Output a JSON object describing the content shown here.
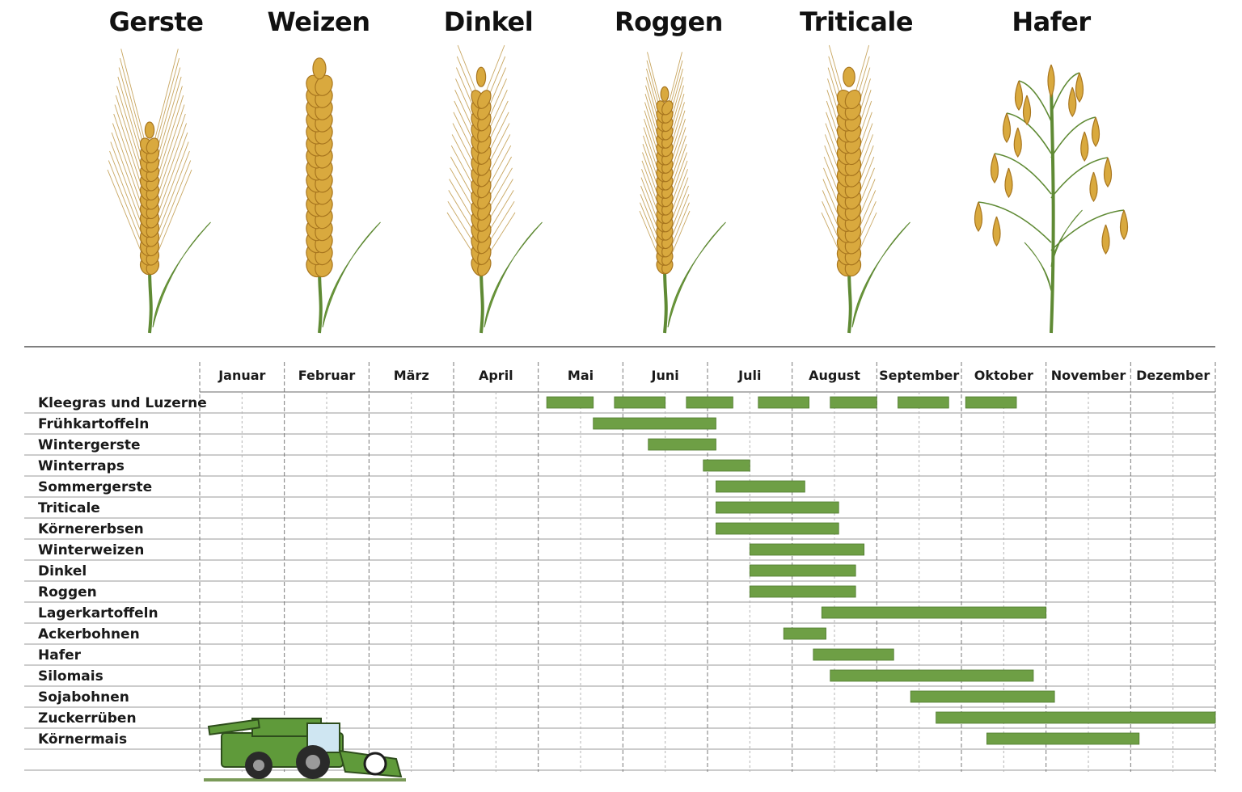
{
  "cereals": [
    {
      "name": "Gerste",
      "style": "barley"
    },
    {
      "name": "Weizen",
      "style": "wheat"
    },
    {
      "name": "Dinkel",
      "style": "spelt"
    },
    {
      "name": "Roggen",
      "style": "rye"
    },
    {
      "name": "Triticale",
      "style": "triticale"
    },
    {
      "name": "Hafer",
      "style": "oat"
    }
  ],
  "colors": {
    "bar": "#6e9f45",
    "bar_edge": "#4f7a2e",
    "grain": "#d9a93e",
    "grain_dark": "#a8761f",
    "stem": "#5f8a34",
    "leaf": "#6f9c3c",
    "grid": "#9a9a9a",
    "harvester": "#5f9a3a"
  },
  "icon": "combine-harvester-icon",
  "chart_data": {
    "type": "gantt",
    "grid": true,
    "x_unit": "month (1 = January start, 13 = December end)",
    "xlim": [
      1,
      13
    ],
    "months": [
      "Januar",
      "Februar",
      "März",
      "April",
      "Mai",
      "Juni",
      "Juli",
      "August",
      "September",
      "Oktober",
      "November",
      "Dezember"
    ],
    "rows": [
      {
        "label": "Kleegras und Luzerne",
        "segments": [
          [
            5.1,
            5.65
          ],
          [
            5.9,
            6.5
          ],
          [
            6.75,
            7.3
          ],
          [
            7.6,
            8.2
          ],
          [
            8.45,
            9.0
          ],
          [
            9.25,
            9.85
          ],
          [
            10.05,
            10.65
          ]
        ]
      },
      {
        "label": "Frühkartoffeln",
        "segments": [
          [
            5.65,
            7.1
          ]
        ]
      },
      {
        "label": "Wintergerste",
        "segments": [
          [
            6.3,
            7.1
          ]
        ]
      },
      {
        "label": "Winterraps",
        "segments": [
          [
            6.95,
            7.5
          ]
        ]
      },
      {
        "label": "Sommergerste",
        "segments": [
          [
            7.1,
            8.15
          ]
        ]
      },
      {
        "label": "Triticale",
        "segments": [
          [
            7.1,
            8.55
          ]
        ]
      },
      {
        "label": "Körnererbsen",
        "segments": [
          [
            7.1,
            8.55
          ]
        ]
      },
      {
        "label": "Winterweizen",
        "segments": [
          [
            7.5,
            8.85
          ]
        ]
      },
      {
        "label": "Dinkel",
        "segments": [
          [
            7.5,
            8.75
          ]
        ]
      },
      {
        "label": "Roggen",
        "segments": [
          [
            7.5,
            8.75
          ]
        ]
      },
      {
        "label": "Lagerkartoffeln",
        "segments": [
          [
            8.35,
            11.0
          ]
        ]
      },
      {
        "label": "Ackerbohnen",
        "segments": [
          [
            7.9,
            8.4
          ]
        ]
      },
      {
        "label": "Hafer",
        "segments": [
          [
            8.25,
            9.2
          ]
        ]
      },
      {
        "label": "Silomais",
        "segments": [
          [
            8.45,
            10.85
          ]
        ]
      },
      {
        "label": "Sojabohnen",
        "segments": [
          [
            9.4,
            11.1
          ]
        ]
      },
      {
        "label": "Zuckerrüben",
        "segments": [
          [
            9.7,
            13.0
          ]
        ]
      },
      {
        "label": "Körnermais",
        "segments": [
          [
            10.3,
            12.1
          ]
        ]
      }
    ]
  }
}
